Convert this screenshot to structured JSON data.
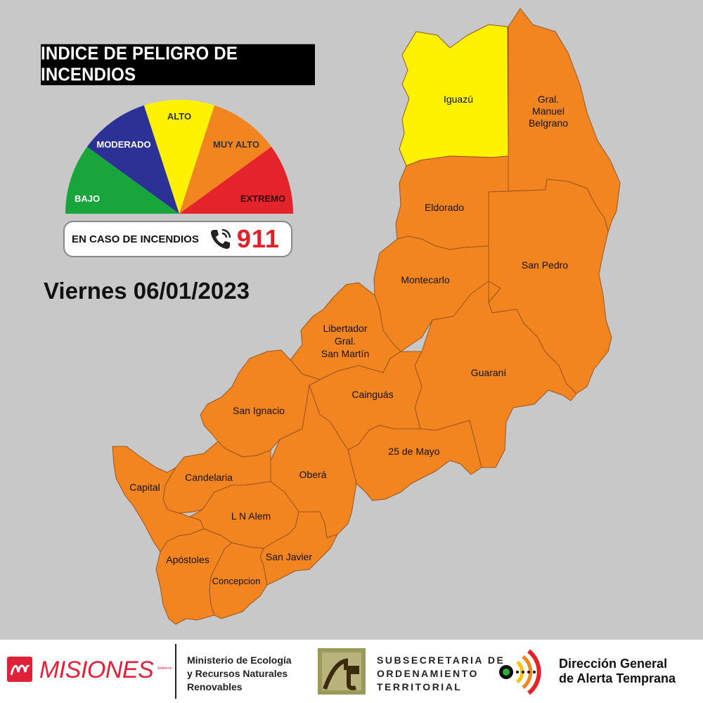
{
  "title": "INDICE DE PELIGRO DE INCENDIOS",
  "legend": {
    "levels": [
      {
        "label": "BAJO",
        "color": "#17a53c"
      },
      {
        "label": "MODERADO",
        "color": "#2b3195"
      },
      {
        "label": "ALTO",
        "color": "#fef200"
      },
      {
        "label": "MUY ALTO",
        "color": "#f28520"
      },
      {
        "label": "EXTREMO",
        "color": "#e4232b"
      }
    ]
  },
  "emergency": {
    "text": "EN CASO DE INCENDIOS",
    "number": "911",
    "icon": "phone-icon"
  },
  "date": "Viernes 06/01/2023",
  "departments": [
    {
      "name": "Iguazú",
      "level": "ALTO"
    },
    {
      "name": "Gral.\nManuel\nBelgrano",
      "level": "MUY ALTO"
    },
    {
      "name": "Eldorado",
      "level": "MUY ALTO"
    },
    {
      "name": "San Pedro",
      "level": "MUY ALTO"
    },
    {
      "name": "Montecarlo",
      "level": "MUY ALTO"
    },
    {
      "name": "Libertador\nGral.\nSan Martín",
      "level": "MUY ALTO"
    },
    {
      "name": "Guaraní",
      "level": "MUY ALTO"
    },
    {
      "name": "Cainguás",
      "level": "MUY ALTO"
    },
    {
      "name": "San Ignacio",
      "level": "MUY ALTO"
    },
    {
      "name": "25 de Mayo",
      "level": "MUY ALTO"
    },
    {
      "name": "Oberá",
      "level": "MUY ALTO"
    },
    {
      "name": "Candelaria",
      "level": "MUY ALTO"
    },
    {
      "name": "Capital",
      "level": "MUY ALTO"
    },
    {
      "name": "L N Alem",
      "level": "MUY ALTO"
    },
    {
      "name": "Apóstoles",
      "level": "MUY ALTO"
    },
    {
      "name": "San Javier",
      "level": "MUY ALTO"
    },
    {
      "name": "Concepcion",
      "level": "MUY ALTO"
    }
  ],
  "colors": {
    "background": "#c8c8c8",
    "border": "#9a5520"
  },
  "footer": {
    "misiones": "MISIONES",
    "misiones_small": "Gobierno",
    "ministerio": "Ministerio de Ecología\ny Recursos Naturales\nRenovables",
    "subsecretaria": "SUBSECRETARIA DE\nORDENAMIENTO\nTERRITORIAL",
    "direccion": "Dirección General\nde Alerta Temprana"
  }
}
